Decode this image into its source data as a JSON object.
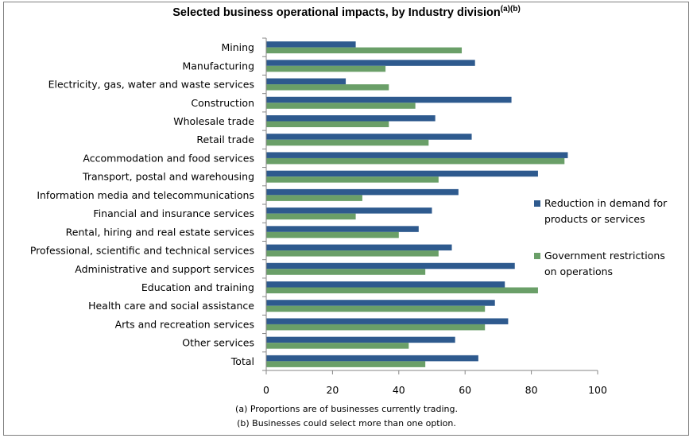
{
  "chart_data": {
    "type": "bar",
    "orientation": "horizontal",
    "title": "Selected business operational impacts, by Industry division",
    "title_superscript": "(a)(b)",
    "categories": [
      "Mining",
      "Manufacturing",
      "Electricity, gas, water and waste services",
      "Construction",
      "Wholesale trade",
      "Retail trade",
      "Accommodation and food services",
      "Transport, postal and warehousing",
      "Information media and telecommunications",
      "Financial and insurance services",
      "Rental, hiring and real estate services",
      "Professional, scientific and technical services",
      "Administrative and support services",
      "Education and training",
      "Health care and social assistance",
      "Arts and recreation services",
      "Other services",
      "Total"
    ],
    "series": [
      {
        "name": "Reduction in demand for products or services",
        "name_lines": [
          "Reduction in demand for",
          "products or services"
        ],
        "color": "#2e5a8e",
        "values": [
          27,
          63,
          24,
          74,
          51,
          62,
          91,
          82,
          58,
          50,
          46,
          56,
          75,
          72,
          69,
          73,
          57,
          64
        ]
      },
      {
        "name": "Government restrictions on operations",
        "name_lines": [
          "Government restrictions",
          "on operations"
        ],
        "color": "#6a9f68",
        "values": [
          59,
          36,
          37,
          45,
          37,
          49,
          90,
          52,
          29,
          27,
          40,
          52,
          48,
          82,
          66,
          66,
          43,
          48
        ]
      }
    ],
    "xlim": [
      0,
      100
    ],
    "xticks": [
      "0",
      "20",
      "40",
      "60",
      "80",
      "100"
    ],
    "xlabel": "",
    "ylabel": "",
    "grid": false,
    "legend_position": "right"
  },
  "footnotes": [
    "(a) Proportions are of businesses currently trading.",
    "(b) Businesses could select more than one option."
  ]
}
